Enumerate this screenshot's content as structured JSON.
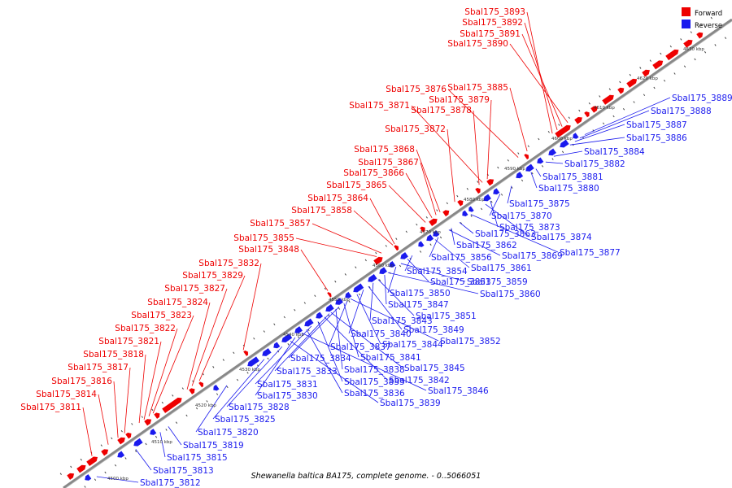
{
  "caption": "Shewanella baltica BA175, complete genome. - 0..5066051",
  "legend": [
    {
      "label": "Forward",
      "color": "#ee0000"
    },
    {
      "label": "Reverse",
      "color": "#1a1aee"
    }
  ],
  "colors": {
    "forward": "#ee0000",
    "reverse": "#1a1aee",
    "axis": "#888888"
  },
  "ticks": [
    "4500 kbp",
    "4510 kbp",
    "4520 kbp",
    "4530 kbp",
    "4540 kbp",
    "4550 kbp",
    "4560 kbp",
    "4570 kbp",
    "4580 kbp",
    "4590 kbp",
    "4600 kbp",
    "4610 kbp",
    "4620 kbp",
    "4630 kbp"
  ],
  "forward_labels": [
    "Sbal175_3893",
    "Sbal175_3892",
    "Sbal175_3891",
    "Sbal175_3890",
    "Sbal175_3876",
    "Sbal175_3885",
    "Sbal175_3879",
    "Sbal175_3871",
    "Sbal175_3878",
    "Sbal175_3872",
    "Sbal175_3868",
    "Sbal175_3867",
    "Sbal175_3866",
    "Sbal175_3865",
    "Sbal175_3864",
    "Sbal175_3858",
    "Sbal175_3857",
    "Sbal175_3855",
    "Sbal175_3848",
    "Sbal175_3832",
    "Sbal175_3829",
    "Sbal175_3827",
    "Sbal175_3824",
    "Sbal175_3823",
    "Sbal175_3822",
    "Sbal175_3821",
    "Sbal175_3818",
    "Sbal175_3817",
    "Sbal175_3816",
    "Sbal175_3814",
    "Sbal175_3811"
  ],
  "reverse_labels": [
    "Sbal175_3889",
    "Sbal175_3888",
    "Sbal175_3887",
    "Sbal175_3886",
    "Sbal175_3884",
    "Sbal175_3882",
    "Sbal175_3881",
    "Sbal175_3880",
    "Sbal175_3875",
    "Sbal175_3870",
    "Sbal175_3873",
    "Sbal175_3874",
    "Sbal175_3877",
    "Sbal175_3863",
    "Sbal175_3862",
    "Sbal175_3869",
    "Sbal175_3856",
    "Sbal175_3861",
    "Sbal175_3854",
    "Sbal175_3853",
    "Sbal175_3859",
    "Sbal175_3850",
    "Sbal175_3860",
    "Sbal175_3847",
    "Sbal175_3851",
    "Sbal175_3843",
    "Sbal175_3849",
    "Sbal175_3840",
    "Sbal175_3844",
    "Sbal175_3852",
    "Sbal175_3837",
    "Sbal175_3841",
    "Sbal175_3834",
    "Sbal175_3838",
    "Sbal175_3845",
    "Sbal175_3833",
    "Sbal175_3842",
    "Sbal175_3835",
    "Sbal175_3831",
    "Sbal175_3836",
    "Sbal175_3846",
    "Sbal175_3830",
    "Sbal175_3839",
    "Sbal175_3828",
    "Sbal175_3825",
    "Sbal175_3820",
    "Sbal175_3819",
    "Sbal175_3815",
    "Sbal175_3813",
    "Sbal175_3812"
  ]
}
